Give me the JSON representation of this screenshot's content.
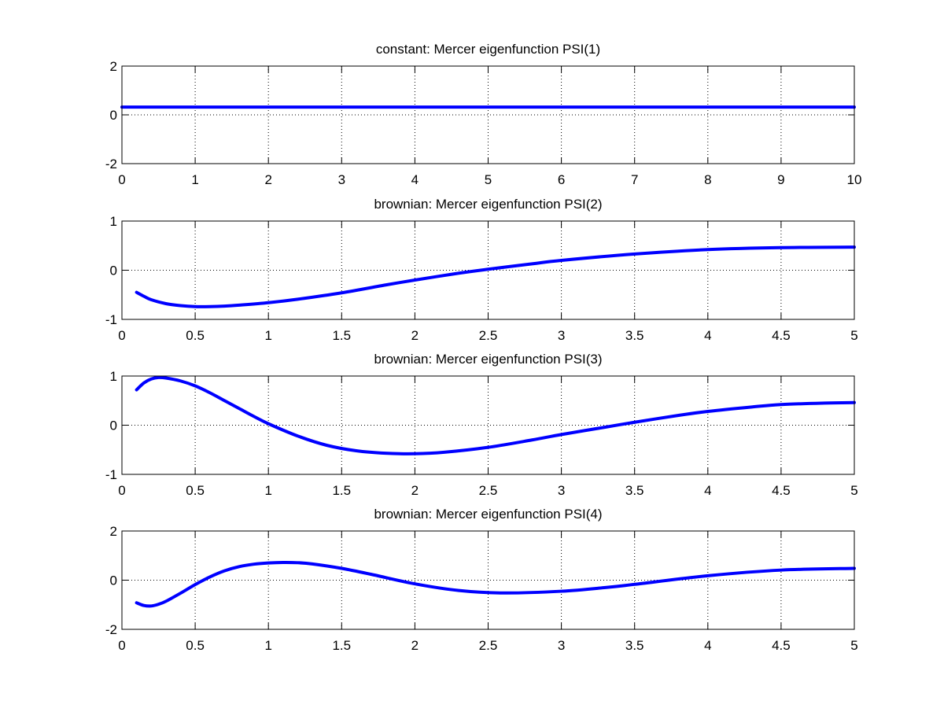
{
  "figure": {
    "background": "#ffffff",
    "axes_color": "#000000",
    "grid_color": "#000000",
    "line_color": "#0000ff"
  },
  "chart_data": [
    {
      "type": "line",
      "title": "constant: Mercer eigenfunction PSI(1)",
      "xlim": [
        0,
        10
      ],
      "ylim": [
        -2,
        2
      ],
      "xticks": [
        0,
        1,
        2,
        3,
        4,
        5,
        6,
        7,
        8,
        9,
        10
      ],
      "xtick_labels": [
        "0",
        "1",
        "2",
        "3",
        "4",
        "5",
        "6",
        "7",
        "8",
        "9",
        "10"
      ],
      "yticks": [
        -2,
        0,
        2
      ],
      "ytick_labels": [
        "-2",
        "0",
        "2"
      ],
      "grid": true,
      "series": [
        {
          "x": [
            0,
            1,
            2,
            3,
            4,
            5,
            6,
            7,
            8,
            9,
            10
          ],
          "y": [
            0.32,
            0.32,
            0.32,
            0.32,
            0.32,
            0.32,
            0.32,
            0.32,
            0.32,
            0.32,
            0.32
          ]
        }
      ]
    },
    {
      "type": "line",
      "title": "brownian: Mercer eigenfunction PSI(2)",
      "xlim": [
        0,
        5
      ],
      "ylim": [
        -1,
        1
      ],
      "xticks": [
        0,
        0.5,
        1,
        1.5,
        2,
        2.5,
        3,
        3.5,
        4,
        4.5,
        5
      ],
      "xtick_labels": [
        "0",
        "0.5",
        "1",
        "1.5",
        "2",
        "2.5",
        "3",
        "3.5",
        "4",
        "4.5",
        "5"
      ],
      "yticks": [
        -1,
        0,
        1
      ],
      "ytick_labels": [
        "-1",
        "0",
        "1"
      ],
      "grid": true,
      "series": [
        {
          "x": [
            0.1,
            0.15,
            0.2,
            0.3,
            0.4,
            0.5,
            0.6,
            0.7,
            0.8,
            1.0,
            1.2,
            1.5,
            1.8,
            2.0,
            2.3,
            2.5,
            2.8,
            3.0,
            3.5,
            4.0,
            4.5,
            5.0
          ],
          "y": [
            -0.45,
            -0.53,
            -0.6,
            -0.68,
            -0.72,
            -0.74,
            -0.74,
            -0.73,
            -0.71,
            -0.66,
            -0.59,
            -0.46,
            -0.3,
            -0.2,
            -0.06,
            0.02,
            0.13,
            0.2,
            0.33,
            0.42,
            0.46,
            0.47
          ]
        }
      ]
    },
    {
      "type": "line",
      "title": "brownian: Mercer eigenfunction PSI(3)",
      "xlim": [
        0,
        5
      ],
      "ylim": [
        -1,
        1
      ],
      "xticks": [
        0,
        0.5,
        1,
        1.5,
        2,
        2.5,
        3,
        3.5,
        4,
        4.5,
        5
      ],
      "xtick_labels": [
        "0",
        "0.5",
        "1",
        "1.5",
        "2",
        "2.5",
        "3",
        "3.5",
        "4",
        "4.5",
        "5"
      ],
      "yticks": [
        -1,
        0,
        1
      ],
      "ytick_labels": [
        "-1",
        "0",
        "1"
      ],
      "grid": true,
      "series": [
        {
          "x": [
            0.1,
            0.15,
            0.2,
            0.25,
            0.3,
            0.4,
            0.5,
            0.6,
            0.7,
            0.8,
            0.9,
            1.0,
            1.2,
            1.4,
            1.6,
            1.8,
            2.0,
            2.2,
            2.5,
            2.8,
            3.0,
            3.3,
            3.5,
            3.8,
            4.0,
            4.3,
            4.5,
            4.8,
            5.0
          ],
          "y": [
            0.72,
            0.86,
            0.94,
            0.97,
            0.96,
            0.9,
            0.8,
            0.66,
            0.5,
            0.34,
            0.18,
            0.03,
            -0.22,
            -0.41,
            -0.52,
            -0.57,
            -0.58,
            -0.55,
            -0.45,
            -0.3,
            -0.19,
            -0.04,
            0.06,
            0.2,
            0.28,
            0.37,
            0.42,
            0.45,
            0.46
          ]
        }
      ]
    },
    {
      "type": "line",
      "title": "brownian: Mercer eigenfunction PSI(4)",
      "xlim": [
        0,
        5
      ],
      "ylim": [
        -2,
        2
      ],
      "xticks": [
        0,
        0.5,
        1,
        1.5,
        2,
        2.5,
        3,
        3.5,
        4,
        4.5,
        5
      ],
      "xtick_labels": [
        "0",
        "0.5",
        "1",
        "1.5",
        "2",
        "2.5",
        "3",
        "3.5",
        "4",
        "4.5",
        "5"
      ],
      "yticks": [
        -2,
        0,
        2
      ],
      "ytick_labels": [
        "-2",
        "0",
        "2"
      ],
      "grid": true,
      "series": [
        {
          "x": [
            0.1,
            0.15,
            0.2,
            0.25,
            0.3,
            0.4,
            0.5,
            0.6,
            0.7,
            0.8,
            0.9,
            1.0,
            1.1,
            1.2,
            1.3,
            1.5,
            1.7,
            2.0,
            2.3,
            2.6,
            3.0,
            3.3,
            3.5,
            4.0,
            4.5,
            5.0
          ],
          "y": [
            -0.92,
            -1.03,
            -1.05,
            -0.98,
            -0.86,
            -0.53,
            -0.18,
            0.13,
            0.38,
            0.55,
            0.65,
            0.7,
            0.72,
            0.71,
            0.66,
            0.48,
            0.24,
            -0.15,
            -0.42,
            -0.52,
            -0.45,
            -0.3,
            -0.17,
            0.18,
            0.41,
            0.48
          ]
        }
      ]
    }
  ]
}
